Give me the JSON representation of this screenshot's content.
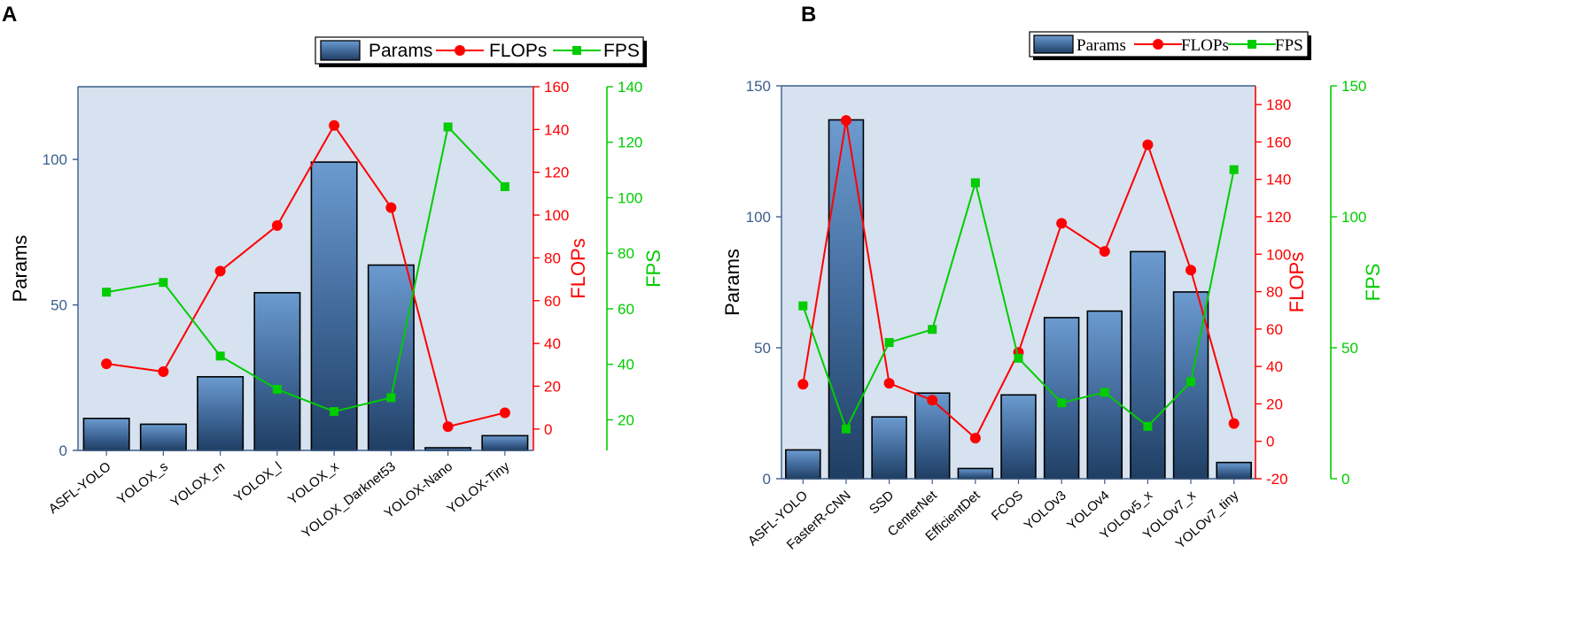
{
  "chart_data": [
    {
      "panel": "A",
      "type": "bar+line",
      "categories": [
        "ASFL-YOLO",
        "YOLOX_s",
        "YOLOX_m",
        "YOLOX_l",
        "YOLOX_x",
        "YOLOX_Darknet53",
        "YOLOX-Nano",
        "YOLOX-Tiny"
      ],
      "series": [
        {
          "name": "Params",
          "type": "bar",
          "axis": "left",
          "values": [
            11,
            9,
            25.3,
            54.2,
            99.1,
            63.7,
            0.91,
            5.06
          ]
        },
        {
          "name": "FLOPs",
          "type": "line",
          "axis": "right1",
          "values": [
            30.5,
            26.8,
            73.8,
            95.1,
            141.9,
            103.5,
            1.1,
            7.6
          ]
        },
        {
          "name": "FPS",
          "type": "line",
          "axis": "right2",
          "values": [
            66,
            69.5,
            43,
            31,
            23,
            28,
            125.5,
            104
          ]
        }
      ],
      "axes": {
        "left": {
          "label": "Params",
          "range": [
            0,
            125
          ],
          "ticks": [
            0,
            50,
            100
          ],
          "color": "#3b5f8c"
        },
        "right1": {
          "label": "FLOPs",
          "range": [
            -10,
            160
          ],
          "ticks": [
            0,
            20,
            40,
            60,
            80,
            100,
            120,
            140,
            160
          ],
          "color": "#ff0000"
        },
        "right2": {
          "label": "FPS",
          "range": [
            9,
            140
          ],
          "ticks": [
            20,
            40,
            60,
            80,
            100,
            120,
            140
          ],
          "color": "#00cc00"
        }
      },
      "legend": {
        "labels": [
          "Params",
          "FLOPs",
          "FPS"
        ],
        "position": "top-right"
      }
    },
    {
      "panel": "B",
      "type": "bar+line",
      "categories": [
        "ASFL-YOLO",
        "FasterR-CNN",
        "SSD",
        "CenterNet",
        "EfficientDet",
        "FCOS",
        "YOLOv3",
        "YOLOv4",
        "YOLOv5_x",
        "YOLOv7_x",
        "YOLOv7_tiny"
      ],
      "series": [
        {
          "name": "Params",
          "type": "bar",
          "axis": "left",
          "values": [
            11,
            137,
            23.6,
            32.7,
            3.9,
            32,
            61.5,
            64,
            86.7,
            71.3,
            6.2
          ]
        },
        {
          "name": "FLOPs",
          "type": "line",
          "axis": "right1",
          "values": [
            30.5,
            171.5,
            31,
            22,
            1.7,
            47.5,
            116.5,
            101.5,
            158.5,
            91.5,
            9.5
          ]
        },
        {
          "name": "FPS",
          "type": "line",
          "axis": "right2",
          "values": [
            66,
            19,
            52,
            57,
            113,
            46,
            29,
            33,
            20,
            37,
            118
          ]
        }
      ],
      "axes": {
        "left": {
          "label": "Params",
          "range": [
            0,
            150
          ],
          "ticks": [
            0,
            50,
            100,
            150
          ],
          "color": "#3b5f8c"
        },
        "right1": {
          "label": "FLOPs",
          "range": [
            -20,
            190
          ],
          "ticks": [
            -20,
            0,
            20,
            40,
            60,
            80,
            100,
            120,
            140,
            160,
            180
          ],
          "color": "#ff0000"
        },
        "right2": {
          "label": "FPS",
          "range": [
            0,
            150
          ],
          "ticks": [
            0,
            50,
            100,
            150
          ],
          "color": "#00cc00"
        }
      },
      "legend": {
        "labels": [
          "Params",
          "FLOPs",
          "FPS"
        ],
        "position": "top-right"
      }
    }
  ]
}
